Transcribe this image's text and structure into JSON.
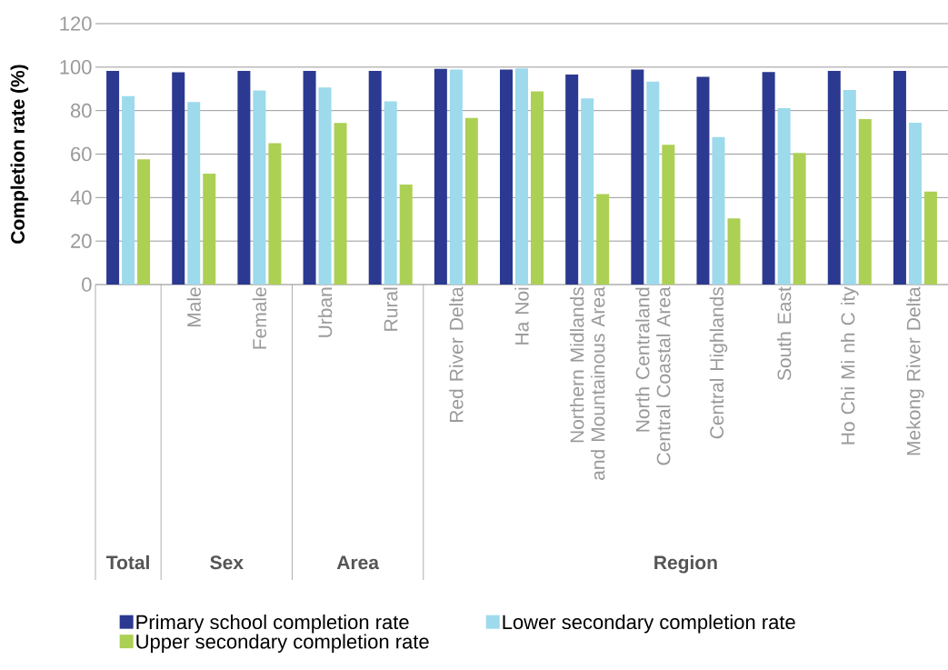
{
  "chart_data": {
    "type": "bar",
    "ylabel": "Completion rate (%)",
    "categories": [
      null,
      "Male",
      "Female",
      "Urban",
      "Rural",
      "Red River Delta",
      "Ha Noi",
      "Northern Midlands and Mountainous Area",
      "North Centraland Central Coastal Area",
      "Central Highlands",
      "South East",
      "Ho Chi Mi nh C ity",
      "Mekong River Delta"
    ],
    "series": [
      {
        "name": "Primary school completion rate",
        "color": "#2b3990",
        "values": [
          98.3,
          97.6,
          98.3,
          98.3,
          98.3,
          99.2,
          98.9,
          96.6,
          98.9,
          95.5,
          97.7,
          98.3,
          98.3
        ]
      },
      {
        "name": "Lower secondary completion rate",
        "color": "#9ddaec",
        "values": [
          86.7,
          83.9,
          89.3,
          90.6,
          84.3,
          98.9,
          99.4,
          85.6,
          93.3,
          67.8,
          81.1,
          89.5,
          74.4
        ]
      },
      {
        "name": "Upper secondary completion rate",
        "color": "#acd054",
        "values": [
          57.6,
          51.0,
          65.0,
          74.3,
          46.0,
          76.6,
          88.8,
          41.6,
          64.3,
          30.4,
          60.5,
          76.1,
          42.7
        ]
      }
    ],
    "annotations": [
      "Total",
      "Sex",
      "Area",
      "Region"
    ],
    "ylim": [
      0,
      120
    ],
    "yticks": [
      0,
      20,
      40,
      60,
      80,
      100,
      120
    ],
    "grid": "y",
    "legend": "bottom"
  }
}
